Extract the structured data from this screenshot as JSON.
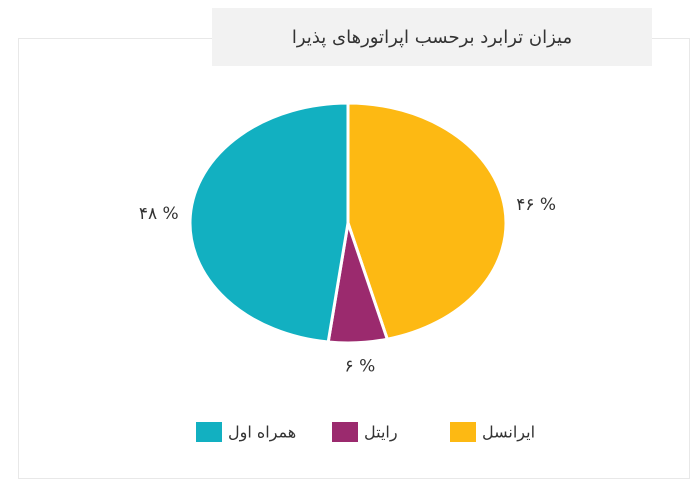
{
  "chart_data": {
    "type": "pie",
    "title": "میزان ترابرد برحسب اپراتورهای پذیرا",
    "categories": [
      "ایرانسل",
      "رایتل",
      "همراه اول"
    ],
    "values": [
      46,
      6,
      48
    ],
    "value_labels": [
      "۴۶ %",
      "۶ %",
      "۴۸ %"
    ],
    "colors": [
      "#fdb913",
      "#9b2a6e",
      "#12b0c1"
    ]
  }
}
